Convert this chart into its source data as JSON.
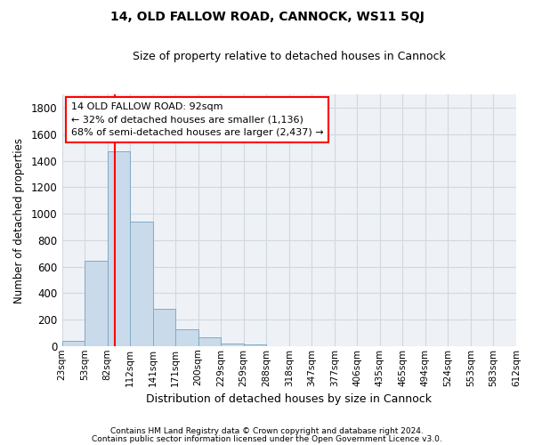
{
  "title1": "14, OLD FALLOW ROAD, CANNOCK, WS11 5QJ",
  "title2": "Size of property relative to detached houses in Cannock",
  "xlabel": "Distribution of detached houses by size in Cannock",
  "ylabel": "Number of detached properties",
  "bin_labels": [
    "23sqm",
    "53sqm",
    "82sqm",
    "112sqm",
    "141sqm",
    "171sqm",
    "200sqm",
    "229sqm",
    "259sqm",
    "288sqm",
    "318sqm",
    "347sqm",
    "377sqm",
    "406sqm",
    "435sqm",
    "465sqm",
    "494sqm",
    "524sqm",
    "553sqm",
    "583sqm",
    "612sqm"
  ],
  "bar_heights": [
    38,
    645,
    1474,
    938,
    283,
    128,
    63,
    20,
    10,
    0,
    0,
    0,
    0,
    0,
    0,
    0,
    0,
    0,
    0,
    0
  ],
  "bar_color": "#c9daea",
  "bar_edge_color": "#7faac8",
  "grid_color": "#d0d8e0",
  "vline_color": "red",
  "annotation_text": "14 OLD FALLOW ROAD: 92sqm\n← 32% of detached houses are smaller (1,136)\n68% of semi-detached houses are larger (2,437) →",
  "annotation_box_color": "white",
  "annotation_box_edge": "red",
  "ylim": [
    0,
    1900
  ],
  "yticks": [
    0,
    200,
    400,
    600,
    800,
    1000,
    1200,
    1400,
    1600,
    1800
  ],
  "footer1": "Contains HM Land Registry data © Crown copyright and database right 2024.",
  "footer2": "Contains public sector information licensed under the Open Government Licence v3.0.",
  "bg_color": "#eef2f7"
}
